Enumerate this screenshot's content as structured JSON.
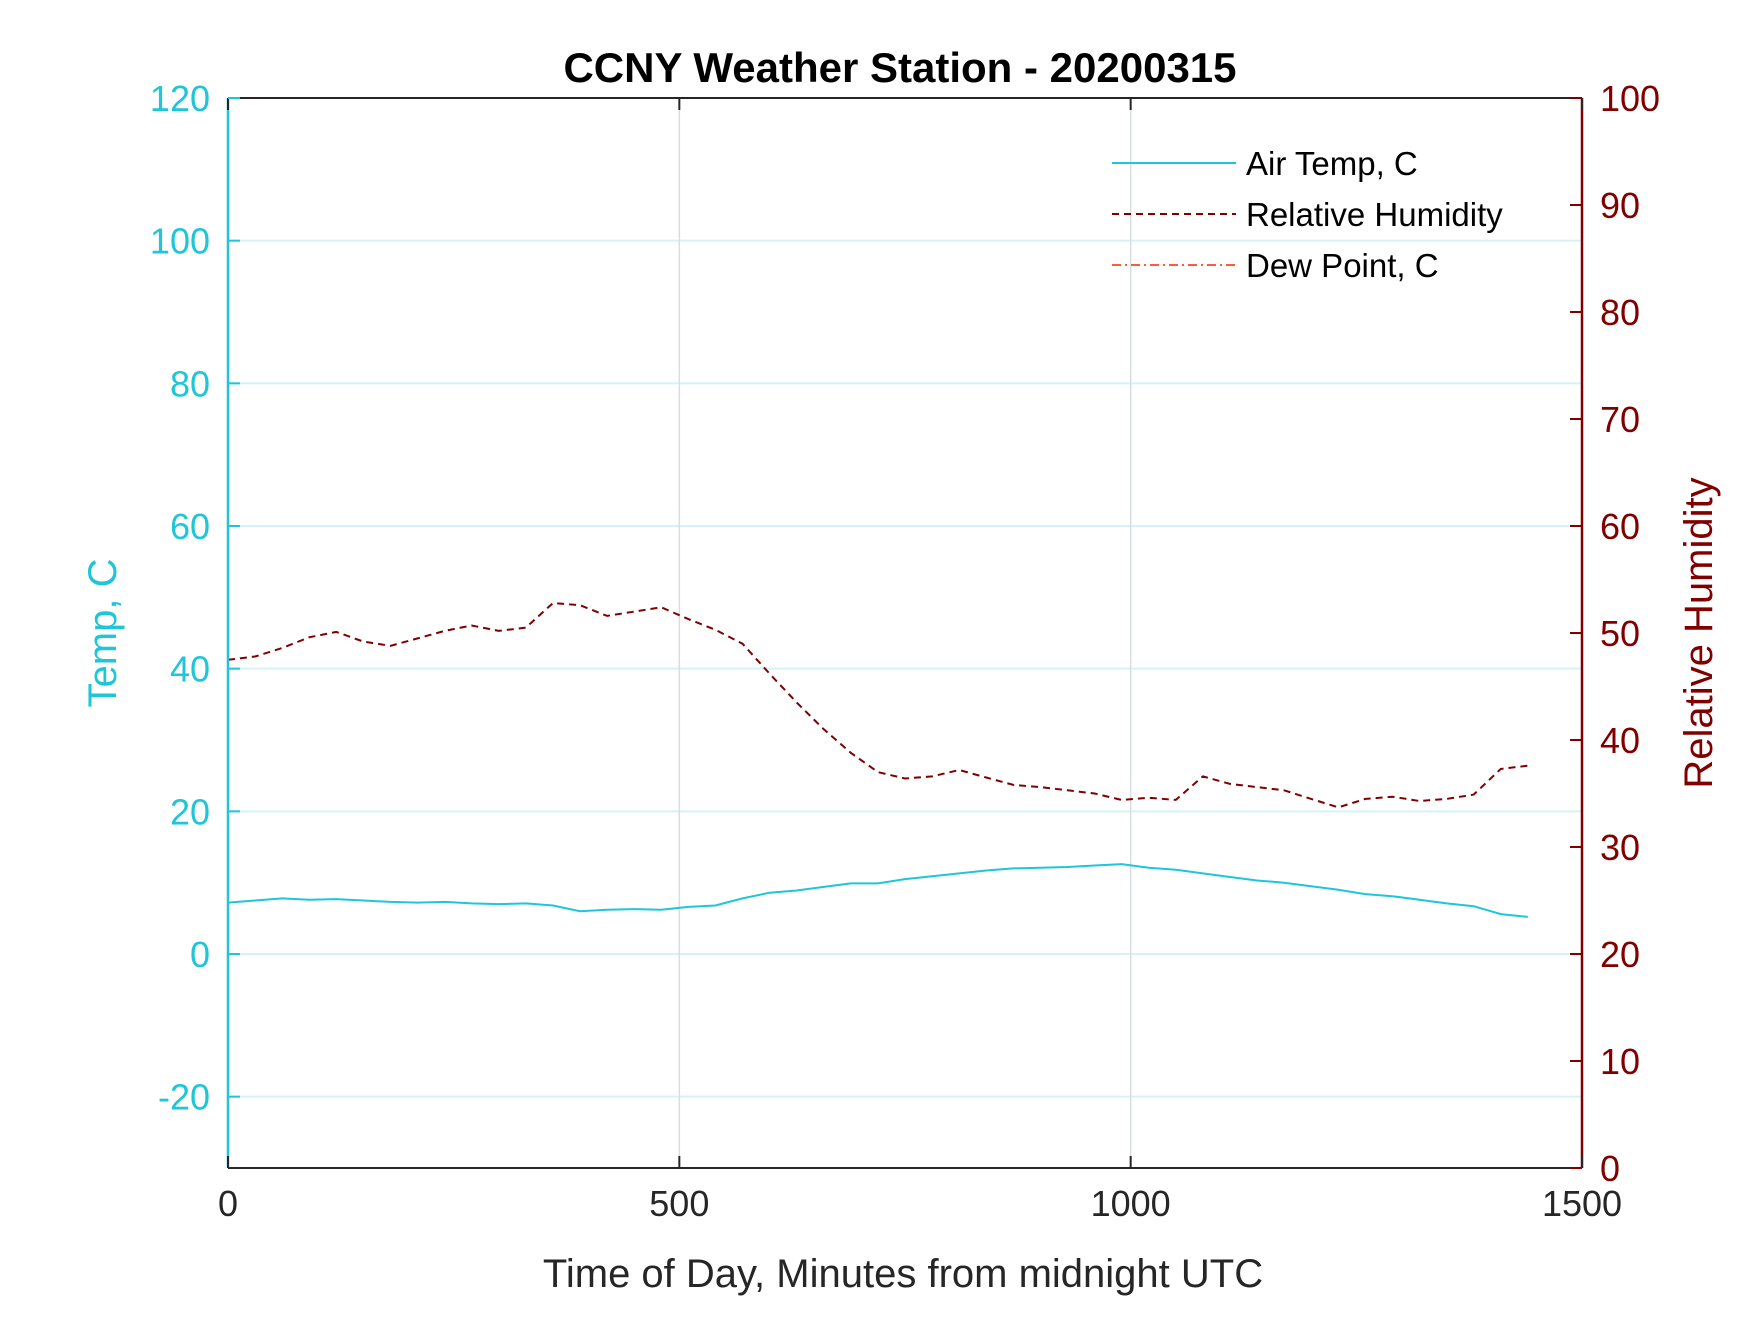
{
  "chart_data": {
    "type": "line",
    "title": "CCNY Weather Station - 20200315",
    "xlabel": "Time of Day, Minutes from midnight UTC",
    "ylabel_left": "Temp, C",
    "ylabel_right": "Relative Humidity",
    "xlim": [
      0,
      1500
    ],
    "ylim_left": [
      -30,
      120
    ],
    "ylim_right": [
      0,
      100
    ],
    "x_ticks": [
      "0",
      "500",
      "1000",
      "1500"
    ],
    "y_left_ticks": [
      "-20",
      "0",
      "20",
      "40",
      "60",
      "80",
      "100",
      "120"
    ],
    "y_right_ticks": [
      "0",
      "10",
      "20",
      "30",
      "40",
      "50",
      "60",
      "70",
      "80",
      "90",
      "100"
    ],
    "grid": "on",
    "legend_position": "top-right",
    "colors": {
      "left_axis": "#1fc5d8",
      "right_axis": "#800000",
      "air_temp": "#1fc5d8",
      "humidity": "#800000",
      "dew_point": "#ff5a3c",
      "grid_vertical": "#d6dde4",
      "grid_horizontal": "#d4f2f7"
    },
    "series": [
      {
        "name": "Air Temp, C",
        "axis": "left",
        "style": "solid",
        "x": [
          0,
          30,
          60,
          90,
          120,
          150,
          180,
          210,
          240,
          270,
          300,
          330,
          360,
          390,
          420,
          450,
          480,
          510,
          540,
          570,
          600,
          630,
          660,
          690,
          720,
          750,
          780,
          810,
          840,
          870,
          900,
          930,
          960,
          990,
          1020,
          1050,
          1080,
          1110,
          1140,
          1170,
          1200,
          1230,
          1260,
          1290,
          1320,
          1350,
          1380,
          1410,
          1440
        ],
        "values": [
          7.2,
          7.5,
          7.8,
          7.6,
          7.7,
          7.5,
          7.3,
          7.2,
          7.3,
          7.1,
          7.0,
          7.1,
          6.8,
          6.0,
          6.2,
          6.3,
          6.2,
          6.6,
          6.8,
          7.8,
          8.6,
          8.9,
          9.4,
          9.9,
          9.9,
          10.5,
          10.9,
          11.3,
          11.7,
          12.0,
          12.1,
          12.2,
          12.4,
          12.6,
          12.1,
          11.8,
          11.3,
          10.8,
          10.3,
          10.0,
          9.5,
          9.0,
          8.4,
          8.1,
          7.6,
          7.1,
          6.7,
          5.6,
          5.2
        ]
      },
      {
        "name": "Relative Humidity",
        "axis": "right",
        "style": "dashed",
        "x": [
          0,
          30,
          60,
          90,
          120,
          150,
          180,
          210,
          240,
          270,
          300,
          330,
          360,
          390,
          420,
          450,
          480,
          510,
          540,
          570,
          600,
          630,
          660,
          690,
          720,
          750,
          780,
          810,
          840,
          870,
          900,
          930,
          960,
          990,
          1020,
          1050,
          1080,
          1110,
          1140,
          1170,
          1200,
          1230,
          1260,
          1290,
          1320,
          1350,
          1380,
          1410,
          1440
        ],
        "values": [
          47.5,
          47.8,
          48.6,
          49.6,
          50.1,
          49.2,
          48.8,
          49.5,
          50.2,
          50.7,
          50.2,
          50.5,
          52.8,
          52.6,
          51.6,
          52.0,
          52.4,
          51.3,
          50.3,
          49.0,
          46.2,
          43.5,
          41.0,
          38.8,
          37.0,
          36.4,
          36.6,
          37.2,
          36.5,
          35.8,
          35.6,
          35.3,
          35.0,
          34.4,
          34.6,
          34.4,
          36.6,
          35.9,
          35.6,
          35.3,
          34.5,
          33.7,
          34.5,
          34.7,
          34.3,
          34.5,
          34.9,
          37.3,
          37.6
        ]
      },
      {
        "name": "Dew Point, C",
        "axis": "left",
        "style": "dash-dot",
        "x": [],
        "values": []
      }
    ]
  }
}
